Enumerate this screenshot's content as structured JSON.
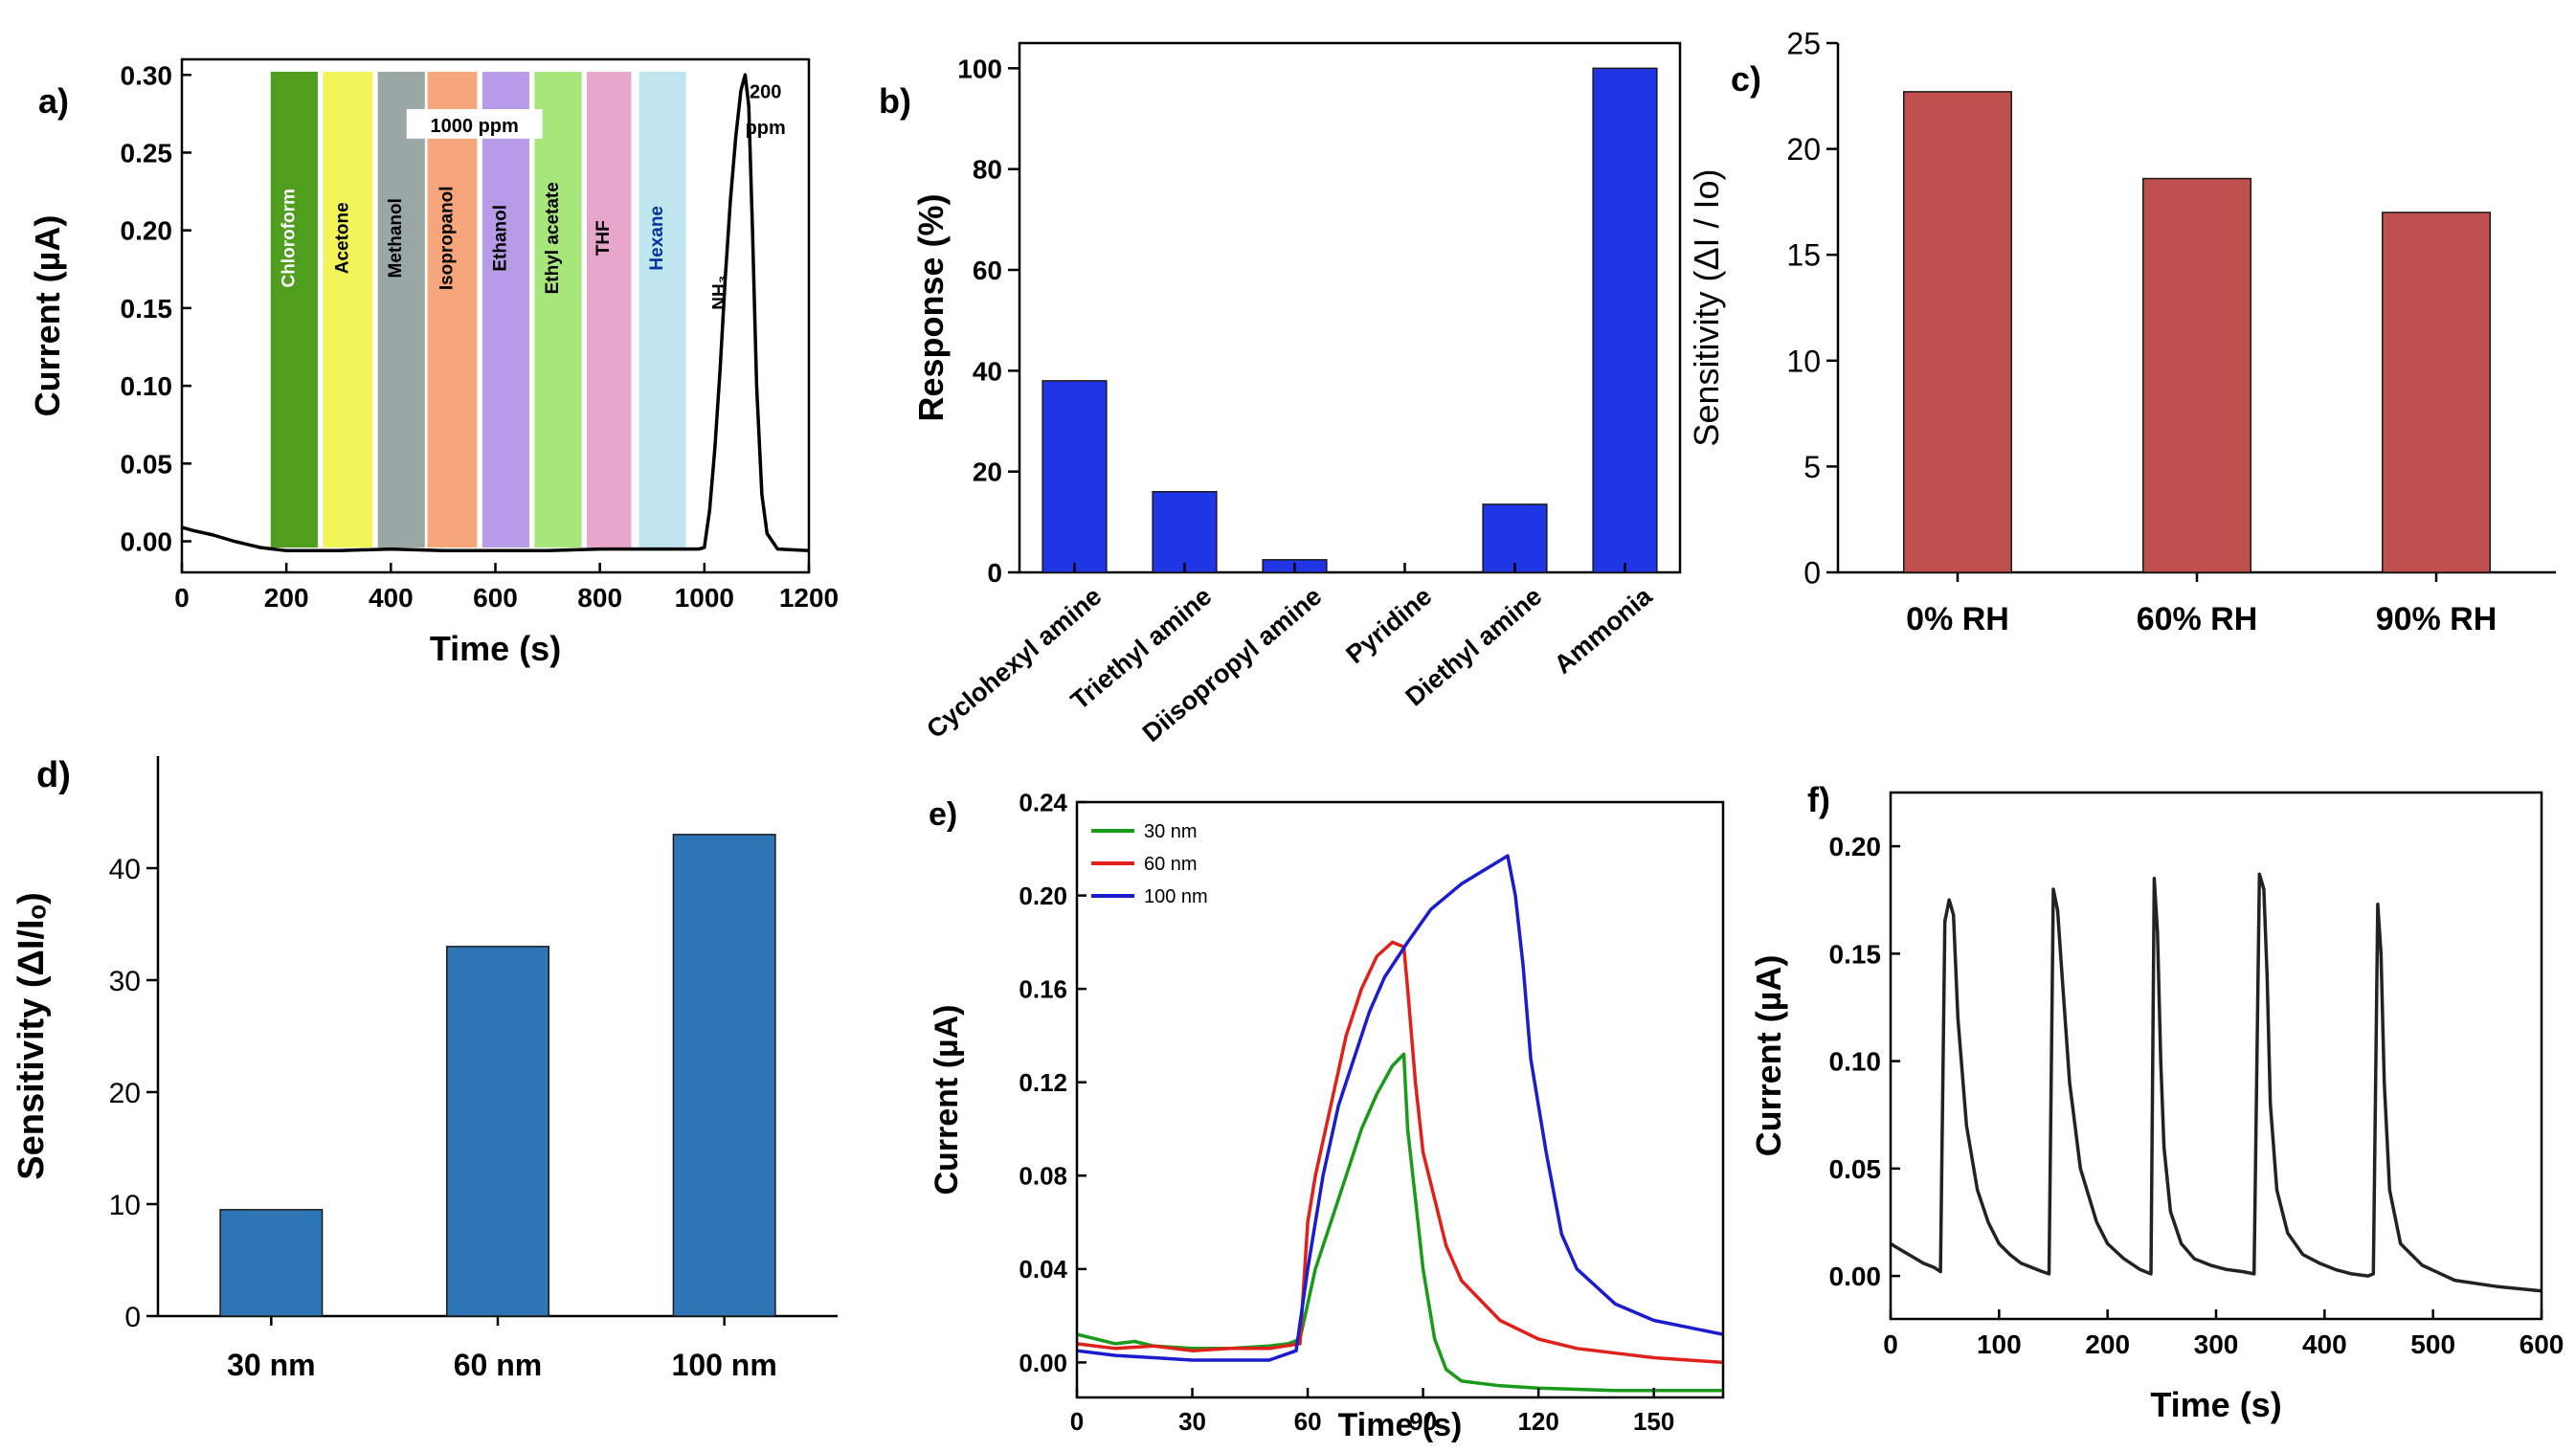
{
  "chart_data": [
    {
      "id": "a",
      "type": "line",
      "panel_label": "a)",
      "xlabel": "Time (s)",
      "ylabel": "Current (µA)",
      "xlim": [
        0,
        1200
      ],
      "ylim": [
        -0.02,
        0.31
      ],
      "xticks": [
        0,
        200,
        400,
        600,
        800,
        1000,
        1200
      ],
      "yticks": [
        0.0,
        0.05,
        0.1,
        0.15,
        0.2,
        0.25,
        0.3
      ],
      "band_label": "1000 ppm",
      "peak_label": "200 ppm",
      "bands": [
        {
          "name": "Chloroform",
          "start": 170,
          "end": 260,
          "color": "#4f9e1d",
          "text_color": "#ffffff"
        },
        {
          "name": "Acetone",
          "start": 270,
          "end": 365,
          "color": "#f2f55a",
          "text_color": "#000000"
        },
        {
          "name": "Methanol",
          "start": 375,
          "end": 465,
          "color": "#9aa7a5",
          "text_color": "#000000"
        },
        {
          "name": "Isopropanol",
          "start": 470,
          "end": 565,
          "color": "#f7a57a",
          "text_color": "#000000"
        },
        {
          "name": "Ethanol",
          "start": 575,
          "end": 665,
          "color": "#b79ae8",
          "text_color": "#000000"
        },
        {
          "name": "Ethyl acetate",
          "start": 675,
          "end": 765,
          "color": "#a6e67a",
          "text_color": "#000000"
        },
        {
          "name": "THF",
          "start": 775,
          "end": 860,
          "color": "#e8a6cc",
          "text_color": "#000000"
        },
        {
          "name": "Hexane",
          "start": 875,
          "end": 965,
          "color": "#bfe6ef",
          "text_color": "#00349a"
        },
        {
          "name": "NH₃",
          "start": 995,
          "end": 1085,
          "color": "none",
          "text_color": "#000000"
        }
      ],
      "series": [
        {
          "name": "response",
          "color": "#000000",
          "x": [
            0,
            20,
            60,
            100,
            150,
            200,
            300,
            400,
            500,
            600,
            700,
            800,
            900,
            990,
            1000,
            1010,
            1020,
            1030,
            1040,
            1050,
            1060,
            1070,
            1078,
            1085,
            1092,
            1100,
            1110,
            1120,
            1140,
            1200
          ],
          "y": [
            0.009,
            0.007,
            0.004,
            0.0,
            -0.004,
            -0.006,
            -0.006,
            -0.005,
            -0.006,
            -0.006,
            -0.006,
            -0.005,
            -0.005,
            -0.005,
            -0.004,
            0.02,
            0.06,
            0.11,
            0.17,
            0.22,
            0.26,
            0.29,
            0.3,
            0.28,
            0.2,
            0.1,
            0.03,
            0.005,
            -0.005,
            -0.006
          ]
        }
      ]
    },
    {
      "id": "b",
      "type": "bar",
      "panel_label": "b)",
      "xlabel": "",
      "ylabel": "Response (%)",
      "ylim": [
        0,
        105
      ],
      "yticks": [
        0,
        20,
        40,
        60,
        80,
        100
      ],
      "bar_color": "#1f35e6",
      "categories": [
        "Cyclohexyl amine",
        "Triethyl amine",
        "Diisopropyl amine",
        "Pyridine",
        "Diethyl amine",
        "Ammonia"
      ],
      "values": [
        38,
        16,
        2.5,
        0,
        13.5,
        100
      ]
    },
    {
      "id": "c",
      "type": "bar",
      "panel_label": "c)",
      "xlabel": "",
      "ylabel": "Sensitivity (ΔI / Io)",
      "ylim": [
        0,
        25
      ],
      "yticks": [
        0,
        5,
        10,
        15,
        20,
        25
      ],
      "bar_color": "#c0504d",
      "categories": [
        "0% RH",
        "60% RH",
        "90% RH"
      ],
      "values": [
        22.7,
        18.6,
        17.0
      ]
    },
    {
      "id": "d",
      "type": "bar",
      "panel_label": "d)",
      "xlabel": "",
      "ylabel": "Sensitivity (ΔI/Iₒ)",
      "ylim": [
        0,
        50
      ],
      "yticks": [
        0,
        10,
        20,
        30,
        40
      ],
      "bar_color": "#2e75b6",
      "categories": [
        "30 nm",
        "60 nm",
        "100 nm"
      ],
      "values": [
        9.5,
        33,
        43
      ]
    },
    {
      "id": "e",
      "type": "line",
      "panel_label": "e)",
      "xlabel": "Time (s)",
      "ylabel": "Current (µA)",
      "xlim": [
        0,
        168
      ],
      "ylim": [
        -0.015,
        0.24
      ],
      "xticks": [
        0,
        30,
        60,
        90,
        120,
        150
      ],
      "yticks": [
        0.0,
        0.04,
        0.08,
        0.12,
        0.16,
        0.2,
        0.24
      ],
      "series": [
        {
          "name": "30 nm",
          "color": "#1a9a1a",
          "x": [
            0,
            5,
            10,
            15,
            20,
            30,
            40,
            50,
            55,
            58,
            62,
            66,
            70,
            74,
            78,
            82,
            85,
            86,
            88,
            90,
            93,
            96,
            100,
            110,
            120,
            140,
            168
          ],
          "y": [
            0.012,
            0.01,
            0.008,
            0.009,
            0.007,
            0.006,
            0.006,
            0.007,
            0.008,
            0.01,
            0.04,
            0.06,
            0.08,
            0.1,
            0.115,
            0.127,
            0.132,
            0.1,
            0.07,
            0.04,
            0.01,
            -0.003,
            -0.008,
            -0.01,
            -0.011,
            -0.012,
            -0.012
          ]
        },
        {
          "name": "60 nm",
          "color": "#e0201a",
          "x": [
            0,
            10,
            20,
            30,
            40,
            50,
            58,
            60,
            62,
            66,
            70,
            74,
            78,
            82,
            85,
            86,
            88,
            90,
            93,
            96,
            100,
            110,
            120,
            130,
            140,
            150,
            168
          ],
          "y": [
            0.008,
            0.006,
            0.007,
            0.005,
            0.006,
            0.006,
            0.008,
            0.06,
            0.08,
            0.11,
            0.14,
            0.16,
            0.174,
            0.18,
            0.178,
            0.16,
            0.12,
            0.09,
            0.07,
            0.05,
            0.035,
            0.018,
            0.01,
            0.006,
            0.004,
            0.002,
            0.0
          ]
        },
        {
          "name": "100 nm",
          "color": "#1c1ccf",
          "x": [
            0,
            10,
            20,
            30,
            40,
            50,
            57,
            60,
            64,
            68,
            72,
            76,
            80,
            86,
            92,
            100,
            108,
            112,
            114,
            116,
            118,
            122,
            126,
            130,
            140,
            150,
            168
          ],
          "y": [
            0.005,
            0.003,
            0.002,
            0.001,
            0.001,
            0.001,
            0.005,
            0.04,
            0.08,
            0.11,
            0.13,
            0.15,
            0.165,
            0.18,
            0.194,
            0.205,
            0.213,
            0.217,
            0.2,
            0.17,
            0.13,
            0.09,
            0.055,
            0.04,
            0.025,
            0.018,
            0.012
          ]
        }
      ]
    },
    {
      "id": "f",
      "type": "line",
      "panel_label": "f)",
      "xlabel": "Time (s)",
      "ylabel": "Current (µA)",
      "xlim": [
        0,
        600
      ],
      "ylim": [
        -0.02,
        0.225
      ],
      "xticks": [
        0,
        100,
        200,
        300,
        400,
        500,
        600
      ],
      "yticks": [
        0.0,
        0.05,
        0.1,
        0.15,
        0.2
      ],
      "series": [
        {
          "name": "cycles",
          "color": "#222222",
          "x": [
            0,
            10,
            20,
            30,
            40,
            46,
            50,
            54,
            58,
            62,
            70,
            80,
            90,
            100,
            110,
            120,
            130,
            140,
            146,
            150,
            154,
            158,
            165,
            175,
            190,
            200,
            215,
            230,
            240,
            243,
            246,
            249,
            252,
            258,
            268,
            280,
            295,
            310,
            325,
            335,
            340,
            344,
            347,
            350,
            356,
            366,
            380,
            395,
            410,
            425,
            440,
            445,
            449,
            452,
            455,
            460,
            470,
            490,
            520,
            560,
            600
          ],
          "y": [
            0.015,
            0.012,
            0.009,
            0.006,
            0.004,
            0.002,
            0.165,
            0.175,
            0.168,
            0.12,
            0.07,
            0.04,
            0.025,
            0.015,
            0.01,
            0.006,
            0.004,
            0.002,
            0.001,
            0.18,
            0.17,
            0.14,
            0.09,
            0.05,
            0.025,
            0.015,
            0.008,
            0.003,
            0.001,
            0.185,
            0.16,
            0.1,
            0.06,
            0.03,
            0.015,
            0.008,
            0.005,
            0.003,
            0.002,
            0.001,
            0.187,
            0.18,
            0.14,
            0.08,
            0.04,
            0.02,
            0.01,
            0.006,
            0.003,
            0.001,
            0.0,
            0.001,
            0.173,
            0.15,
            0.09,
            0.04,
            0.015,
            0.005,
            -0.002,
            -0.005,
            -0.007
          ]
        }
      ]
    }
  ]
}
